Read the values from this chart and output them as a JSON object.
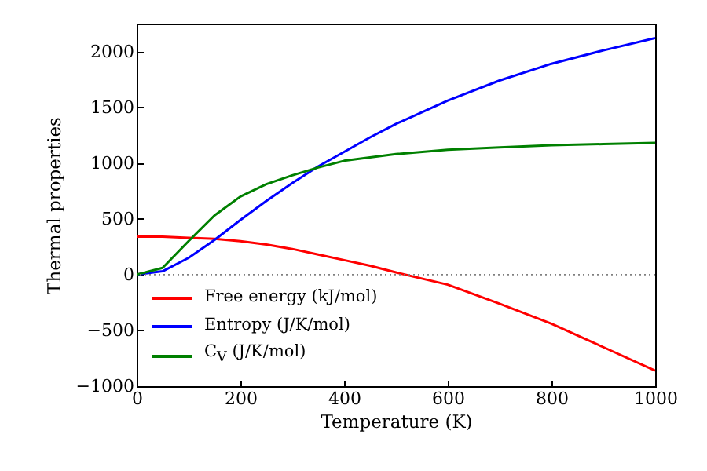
{
  "chart_data": {
    "type": "line",
    "xlabel": "Temperature (K)",
    "ylabel": "Thermal properties",
    "xlim": [
      0,
      1000
    ],
    "xticks": [
      0,
      200,
      400,
      600,
      800,
      1000
    ],
    "ylim": [
      -1000,
      2250
    ],
    "yticks": [
      -1000,
      -500,
      0,
      500,
      1000,
      1500,
      2000
    ],
    "x": [
      0,
      50,
      100,
      150,
      200,
      250,
      300,
      350,
      400,
      450,
      500,
      600,
      700,
      800,
      900,
      1000
    ],
    "series": [
      {
        "name": "Free energy (kJ/mol)",
        "color": "#ff0000",
        "values": [
          340,
          340,
          330,
          320,
          300,
          270,
          230,
          180,
          130,
          80,
          20,
          -90,
          -260,
          -440,
          -650,
          -860
        ]
      },
      {
        "name": "Entropy (J/K/mol)",
        "color": "#0000ff",
        "values": [
          0,
          30,
          150,
          310,
          490,
          660,
          820,
          970,
          1100,
          1230,
          1350,
          1560,
          1740,
          1890,
          2010,
          2120
        ]
      },
      {
        "name": "C$_{V}$ (J/K/mol)",
        "color": "#008000",
        "values": [
          0,
          60,
          300,
          530,
          700,
          810,
          890,
          960,
          1020,
          1050,
          1080,
          1120,
          1140,
          1160,
          1170,
          1180
        ]
      }
    ],
    "ref_lines": [
      {
        "axis": "y",
        "value": 0,
        "color": "#808080",
        "line_style": "dotted"
      }
    ],
    "legend": "bottom left",
    "grid": false,
    "line_style": "solid",
    "marker": "none"
  }
}
